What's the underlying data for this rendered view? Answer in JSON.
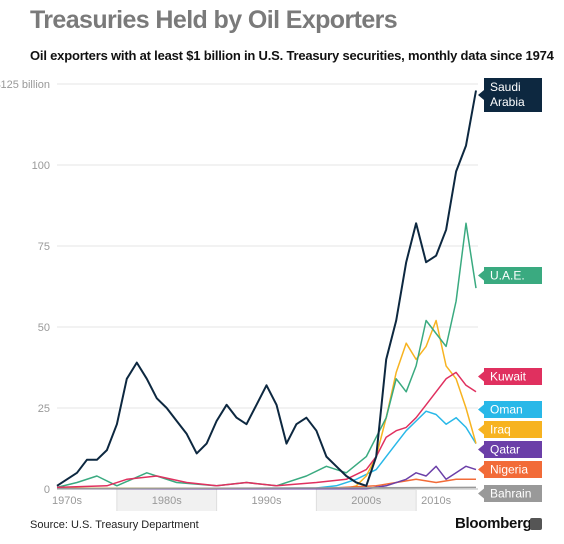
{
  "chart_data": {
    "type": "line",
    "title": "Treasuries Held by Oil Exporters",
    "subtitle": "Oil exporters with at least $1 billion in U.S. Treasury securities,  monthly data since 1974",
    "source": "Source: U.S. Treasury Department",
    "brand": "Bloomberg",
    "y_ticks": [
      {
        "value": 125,
        "label": "$125 billion"
      },
      {
        "value": 100,
        "label": "100"
      },
      {
        "value": 75,
        "label": "75"
      },
      {
        "value": 50,
        "label": "50"
      },
      {
        "value": 25,
        "label": "25"
      },
      {
        "value": 0,
        "label": "0"
      }
    ],
    "x_ticks": [
      {
        "value": 1975,
        "label": "1970s"
      },
      {
        "value": 1985,
        "label": "1980s"
      },
      {
        "value": 1995,
        "label": "1990s"
      },
      {
        "value": 2005,
        "label": "2000s"
      },
      {
        "value": 2012,
        "label": "2010s"
      }
    ],
    "x_bands": [
      [
        1980,
        1990
      ],
      [
        2000,
        2010
      ]
    ],
    "xlim": [
      1974,
      2016.2
    ],
    "ylim": [
      0,
      125
    ],
    "grid": true,
    "legend": "right",
    "series": [
      {
        "name": "Oman",
        "label": "Oman",
        "color": "#29b8e8",
        "points": [
          [
            1974,
            0.2
          ],
          [
            1990,
            0.2
          ],
          [
            2000,
            0.3
          ],
          [
            2002,
            1
          ],
          [
            2004,
            3
          ],
          [
            2006,
            6
          ],
          [
            2007,
            10
          ],
          [
            2008,
            14
          ],
          [
            2009,
            18
          ],
          [
            2010,
            21
          ],
          [
            2011,
            24
          ],
          [
            2012,
            23
          ],
          [
            2013,
            20
          ],
          [
            2014,
            22
          ],
          [
            2015,
            19
          ],
          [
            2016,
            14
          ]
        ]
      },
      {
        "name": "Iraq",
        "label": "Iraq",
        "color": "#f7b320",
        "points": [
          [
            1974,
            0.2
          ],
          [
            2003,
            0.2
          ],
          [
            2004,
            1
          ],
          [
            2005,
            4
          ],
          [
            2006,
            10
          ],
          [
            2007,
            22
          ],
          [
            2008,
            36
          ],
          [
            2009,
            45
          ],
          [
            2010,
            40
          ],
          [
            2011,
            44
          ],
          [
            2012,
            52
          ],
          [
            2013,
            38
          ],
          [
            2014,
            34
          ],
          [
            2015,
            25
          ],
          [
            2016,
            14
          ]
        ]
      },
      {
        "name": "U.A.E.",
        "label": "U.A.E.",
        "color": "#3aaa80",
        "points": [
          [
            1974,
            0.5
          ],
          [
            1976,
            2
          ],
          [
            1978,
            4
          ],
          [
            1980,
            1
          ],
          [
            1983,
            5
          ],
          [
            1986,
            2
          ],
          [
            1990,
            1
          ],
          [
            1993,
            2
          ],
          [
            1996,
            1
          ],
          [
            1999,
            4
          ],
          [
            2001,
            7
          ],
          [
            2003,
            5
          ],
          [
            2005,
            10
          ],
          [
            2006,
            16
          ],
          [
            2007,
            22
          ],
          [
            2008,
            34
          ],
          [
            2009,
            30
          ],
          [
            2010,
            38
          ],
          [
            2011,
            52
          ],
          [
            2012,
            48
          ],
          [
            2013,
            44
          ],
          [
            2014,
            58
          ],
          [
            2015,
            82
          ],
          [
            2016,
            62
          ]
        ]
      },
      {
        "name": "Kuwait",
        "label": "Kuwait",
        "color": "#e0305f",
        "points": [
          [
            1974,
            0.5
          ],
          [
            1979,
            1
          ],
          [
            1981,
            3
          ],
          [
            1984,
            4
          ],
          [
            1987,
            2
          ],
          [
            1990,
            1
          ],
          [
            1993,
            2
          ],
          [
            1996,
            1
          ],
          [
            2000,
            2
          ],
          [
            2003,
            3
          ],
          [
            2005,
            6
          ],
          [
            2006,
            10
          ],
          [
            2007,
            16
          ],
          [
            2008,
            18
          ],
          [
            2009,
            19
          ],
          [
            2010,
            22
          ],
          [
            2011,
            26
          ],
          [
            2012,
            30
          ],
          [
            2013,
            34
          ],
          [
            2014,
            36
          ],
          [
            2015,
            32
          ],
          [
            2016,
            30
          ]
        ]
      },
      {
        "name": "Nigeria",
        "label": "Nigeria",
        "color": "#f26b38",
        "points": [
          [
            1974,
            0.1
          ],
          [
            2000,
            0.1
          ],
          [
            2006,
            1
          ],
          [
            2008,
            2
          ],
          [
            2010,
            3
          ],
          [
            2012,
            2
          ],
          [
            2014,
            3
          ],
          [
            2016,
            3
          ]
        ]
      },
      {
        "name": "Qatar",
        "label": "Qatar",
        "color": "#6b3fa8",
        "points": [
          [
            1974,
            0.1
          ],
          [
            2005,
            0.1
          ],
          [
            2007,
            1
          ],
          [
            2009,
            3
          ],
          [
            2010,
            5
          ],
          [
            2011,
            4
          ],
          [
            2012,
            7
          ],
          [
            2013,
            3
          ],
          [
            2014,
            5
          ],
          [
            2015,
            7
          ],
          [
            2016,
            6
          ]
        ]
      },
      {
        "name": "Bahrain",
        "label": "Bahrain",
        "color": "#999999",
        "points": [
          [
            1974,
            0.1
          ],
          [
            2016,
            0.5
          ]
        ]
      },
      {
        "name": "Saudi Arabia",
        "label": [
          "Saudi",
          "Arabia"
        ],
        "color": "#0d2840",
        "points": [
          [
            1974,
            1
          ],
          [
            1975,
            3
          ],
          [
            1976,
            5
          ],
          [
            1977,
            9
          ],
          [
            1978,
            9
          ],
          [
            1979,
            12
          ],
          [
            1980,
            20
          ],
          [
            1981,
            34
          ],
          [
            1982,
            39
          ],
          [
            1983,
            34
          ],
          [
            1984,
            28
          ],
          [
            1985,
            25
          ],
          [
            1986,
            21
          ],
          [
            1987,
            17
          ],
          [
            1988,
            11
          ],
          [
            1989,
            14
          ],
          [
            1990,
            21
          ],
          [
            1991,
            26
          ],
          [
            1992,
            22
          ],
          [
            1993,
            20
          ],
          [
            1994,
            26
          ],
          [
            1995,
            32
          ],
          [
            1996,
            26
          ],
          [
            1997,
            14
          ],
          [
            1998,
            20
          ],
          [
            1999,
            22
          ],
          [
            2000,
            18
          ],
          [
            2001,
            10
          ],
          [
            2002,
            7
          ],
          [
            2003,
            4
          ],
          [
            2004,
            2
          ],
          [
            2005,
            1
          ],
          [
            2006,
            10
          ],
          [
            2007,
            40
          ],
          [
            2008,
            52
          ],
          [
            2009,
            70
          ],
          [
            2010,
            82
          ],
          [
            2011,
            70
          ],
          [
            2012,
            72
          ],
          [
            2013,
            80
          ],
          [
            2014,
            98
          ],
          [
            2015,
            106
          ],
          [
            2016,
            123
          ]
        ]
      }
    ]
  }
}
